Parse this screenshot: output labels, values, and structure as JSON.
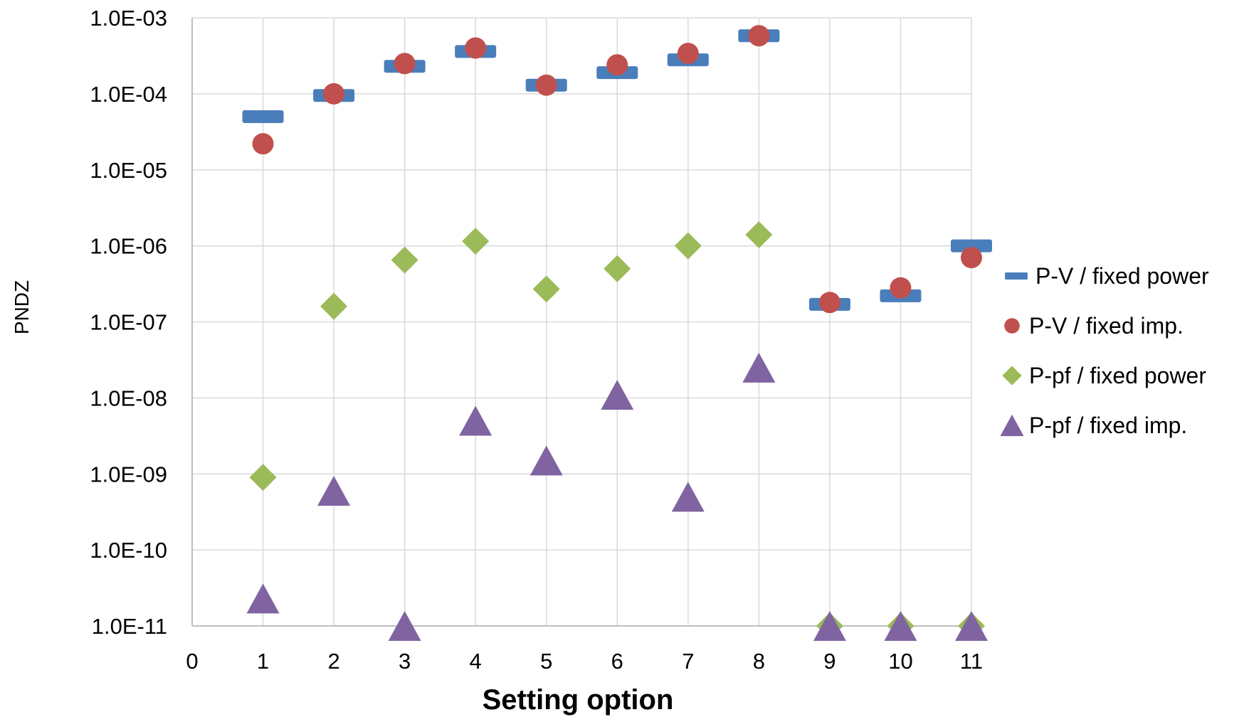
{
  "chart_data": {
    "type": "scatter",
    "title": "",
    "xlabel": "Setting option",
    "ylabel": "PNDZ",
    "xlim": [
      0,
      11
    ],
    "x_ticks": [
      0,
      1,
      2,
      3,
      4,
      5,
      6,
      7,
      8,
      9,
      10,
      11
    ],
    "y_scale": "log",
    "ylim": [
      1e-11,
      0.001
    ],
    "y_tick_labels": [
      "1.0E-11",
      "1.0E-10",
      "1.0E-09",
      "1.0E-08",
      "1.0E-07",
      "1.0E-06",
      "1.0E-05",
      "1.0E-04",
      "1.0E-03"
    ],
    "grid": true,
    "legend_position": "right",
    "series": [
      {
        "name": "P-V / fixed power",
        "marker": "dash",
        "color": "#4A7EBB",
        "points": [
          [
            1,
            5e-05
          ],
          [
            2,
            9.5e-05
          ],
          [
            3,
            0.00023
          ],
          [
            4,
            0.00036
          ],
          [
            5,
            0.00013
          ],
          [
            6,
            0.00019
          ],
          [
            7,
            0.00028
          ],
          [
            8,
            0.00058
          ],
          [
            9,
            1.7e-07
          ],
          [
            10,
            2.2e-07
          ],
          [
            11,
            1e-06
          ]
        ]
      },
      {
        "name": "P-V / fixed imp.",
        "marker": "circle",
        "color": "#C0504D",
        "points": [
          [
            1,
            2.2e-05
          ],
          [
            2,
            0.0001
          ],
          [
            3,
            0.00025
          ],
          [
            4,
            0.0004
          ],
          [
            5,
            0.00013
          ],
          [
            6,
            0.00024
          ],
          [
            7,
            0.00034
          ],
          [
            8,
            0.00058
          ],
          [
            9,
            1.8e-07
          ],
          [
            10,
            2.8e-07
          ],
          [
            11,
            7e-07
          ]
        ]
      },
      {
        "name": "P-pf / fixed power",
        "marker": "diamond",
        "color": "#9BBB59",
        "points": [
          [
            1,
            9e-10
          ],
          [
            2,
            1.6e-07
          ],
          [
            3,
            6.5e-07
          ],
          [
            4,
            1.15e-06
          ],
          [
            5,
            2.7e-07
          ],
          [
            6,
            5e-07
          ],
          [
            7,
            1e-06
          ],
          [
            8,
            1.4e-06
          ],
          [
            9,
            1e-11
          ],
          [
            10,
            1e-11
          ],
          [
            11,
            1e-11
          ]
        ]
      },
      {
        "name": "P-pf / fixed imp.",
        "marker": "triangle",
        "color": "#8064A2",
        "points": [
          [
            1,
            2.3e-11
          ],
          [
            2,
            6e-10
          ],
          [
            3,
            1e-11
          ],
          [
            4,
            5e-09
          ],
          [
            5,
            1.5e-09
          ],
          [
            6,
            1.1e-08
          ],
          [
            7,
            5e-10
          ],
          [
            8,
            2.5e-08
          ],
          [
            9,
            1e-11
          ],
          [
            10,
            1e-11
          ],
          [
            11,
            1e-11
          ]
        ]
      }
    ]
  }
}
